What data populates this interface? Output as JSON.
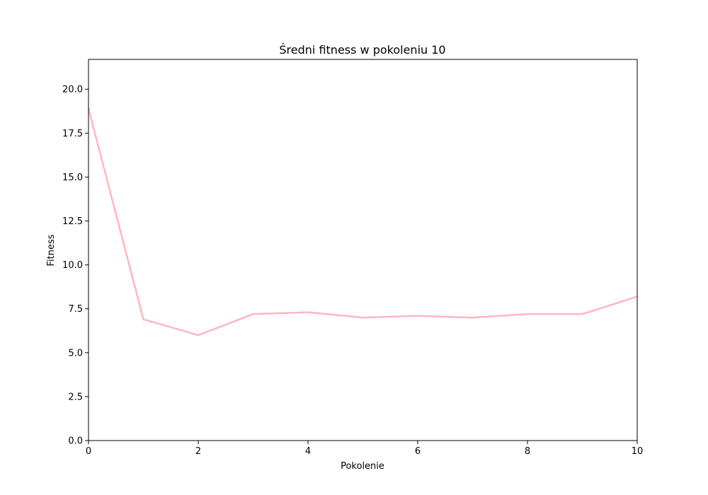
{
  "chart_data": {
    "type": "line",
    "title": "Średni fitness w pokoleniu 10",
    "xlabel": "Pokolenie",
    "ylabel": "Fitness",
    "xlim": [
      0,
      10
    ],
    "ylim": [
      0,
      21.7
    ],
    "x_ticks": [
      0,
      2,
      4,
      6,
      8,
      10
    ],
    "x_tick_labels": [
      "0",
      "2",
      "4",
      "6",
      "8",
      "10"
    ],
    "y_ticks": [
      0,
      2.5,
      5,
      7.5,
      10,
      12.5,
      15,
      17.5,
      20
    ],
    "y_tick_labels": [
      "0.0",
      "2.5",
      "5.0",
      "7.5",
      "10.0",
      "12.5",
      "15.0",
      "17.5",
      "20.0"
    ],
    "grid": false,
    "series": [
      {
        "color": "#ffb6c1",
        "x": [
          0,
          1,
          2,
          3,
          4,
          5,
          6,
          7,
          8,
          9,
          10
        ],
        "y": [
          18.9,
          6.9,
          6.0,
          7.2,
          7.3,
          7.0,
          7.1,
          7.0,
          7.2,
          7.2,
          8.2
        ]
      }
    ]
  }
}
